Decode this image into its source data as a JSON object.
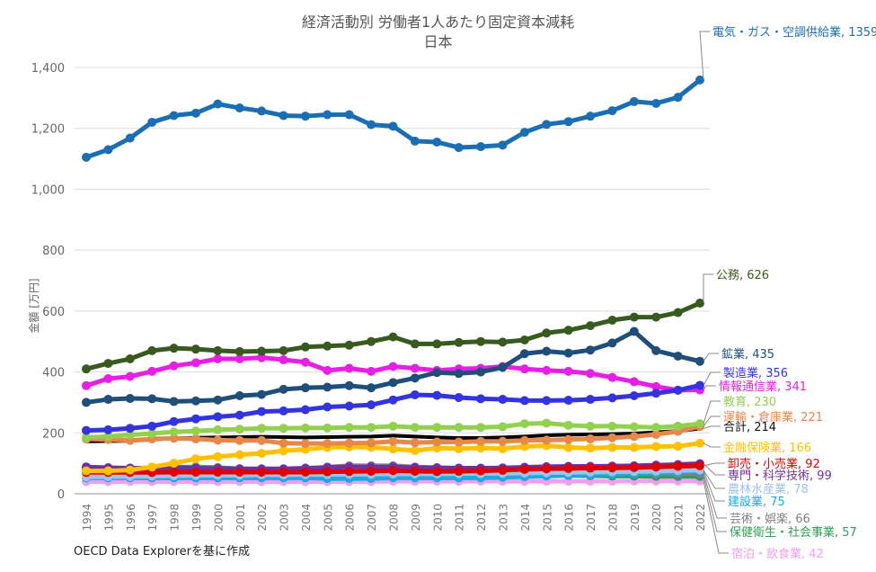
{
  "chart_data": {
    "type": "line",
    "title": "経済活動別 労働者1人あたり固定資本減耗",
    "subtitle": "日本",
    "xlabel": "",
    "ylabel": "金額 [万円]",
    "ylim": [
      0,
      1400
    ],
    "yticks": [
      0,
      200,
      400,
      600,
      800,
      1000,
      1200,
      1400
    ],
    "ytick_labels": [
      "0",
      "200",
      "400",
      "600",
      "800",
      "1,000",
      "1,200",
      "1,400"
    ],
    "grid": true,
    "legend": "direct labels at right end of lines",
    "x": [
      1994,
      1995,
      1996,
      1997,
      1998,
      1999,
      2000,
      2001,
      2002,
      2003,
      2004,
      2005,
      2006,
      2007,
      2008,
      2009,
      2010,
      2011,
      2012,
      2013,
      2014,
      2015,
      2016,
      2017,
      2018,
      2019,
      2020,
      2021,
      2022
    ],
    "series": [
      {
        "name": "電気・ガス・空調供給業",
        "label": "電気・ガス・空調供給業, 1359",
        "color": "#1a6fb4",
        "values": [
          1105,
          1130,
          1168,
          1220,
          1242,
          1250,
          1280,
          1267,
          1257,
          1242,
          1240,
          1245,
          1245,
          1212,
          1207,
          1158,
          1155,
          1137,
          1140,
          1145,
          1187,
          1213,
          1222,
          1240,
          1258,
          1288,
          1282,
          1302,
          1359
        ]
      },
      {
        "name": "公務",
        "label": "公務, 626",
        "color": "#375a1e",
        "values": [
          410,
          428,
          443,
          470,
          478,
          475,
          470,
          467,
          468,
          470,
          482,
          485,
          488,
          500,
          515,
          492,
          492,
          497,
          500,
          498,
          505,
          528,
          537,
          552,
          570,
          580,
          580,
          595,
          626
        ]
      },
      {
        "name": "鉱業",
        "label": "鉱業, 435",
        "color": "#1f4e79",
        "values": [
          300,
          310,
          313,
          312,
          303,
          305,
          308,
          322,
          326,
          343,
          348,
          350,
          355,
          348,
          365,
          380,
          398,
          395,
          400,
          415,
          460,
          468,
          462,
          472,
          495,
          533,
          470,
          452,
          435
        ]
      },
      {
        "name": "製造業",
        "label": "製造業, 356",
        "color": "#3333e0",
        "values": [
          208,
          210,
          215,
          222,
          237,
          246,
          253,
          258,
          270,
          272,
          276,
          285,
          288,
          292,
          308,
          325,
          323,
          316,
          312,
          310,
          306,
          306,
          307,
          310,
          315,
          322,
          330,
          340,
          356
        ]
      },
      {
        "name": "情報通信業",
        "label": "情報通信業, 341",
        "color": "#e61ee6",
        "values": [
          355,
          378,
          385,
          402,
          420,
          430,
          443,
          443,
          447,
          440,
          432,
          405,
          412,
          402,
          418,
          412,
          405,
          410,
          412,
          418,
          410,
          405,
          402,
          395,
          382,
          368,
          352,
          340,
          341
        ]
      },
      {
        "name": "教育",
        "label": "教育, 230",
        "color": "#92d050",
        "values": [
          185,
          188,
          193,
          198,
          203,
          206,
          210,
          212,
          215,
          215,
          216,
          216,
          218,
          218,
          222,
          218,
          218,
          218,
          218,
          220,
          230,
          232,
          225,
          222,
          222,
          220,
          218,
          222,
          230
        ]
      },
      {
        "name": "運輸・倉庫業",
        "label": "運輸・倉庫業, 221",
        "color": "#e5884a",
        "values": [
          180,
          178,
          175,
          180,
          182,
          180,
          176,
          175,
          175,
          166,
          165,
          165,
          166,
          167,
          172,
          168,
          170,
          170,
          172,
          172,
          175,
          176,
          178,
          180,
          184,
          188,
          195,
          205,
          221
        ]
      },
      {
        "name": "合計",
        "label": "合計, 214",
        "color": "#000000",
        "values": [
          172,
          173,
          174,
          178,
          182,
          184,
          185,
          186,
          187,
          186,
          185,
          186,
          187,
          188,
          191,
          188,
          185,
          183,
          183,
          185,
          188,
          192,
          194,
          195,
          196,
          198,
          202,
          206,
          214
        ]
      },
      {
        "name": "金融保険業",
        "label": "金融保険業, 166",
        "color": "#ffc000",
        "values": [
          75,
          75,
          78,
          88,
          100,
          115,
          122,
          128,
          133,
          141,
          146,
          152,
          154,
          153,
          147,
          142,
          150,
          148,
          150,
          148,
          155,
          158,
          152,
          150,
          152,
          152,
          155,
          156,
          166
        ]
      },
      {
        "name": "卸売・小売業",
        "label": "卸売・小売業, 92",
        "color": "#e00000",
        "values": [
          70,
          70,
          70,
          70,
          71,
          71,
          71,
          71,
          71,
          71,
          71,
          72,
          73,
          74,
          76,
          74,
          73,
          74,
          75,
          77,
          80,
          82,
          83,
          84,
          85,
          86,
          88,
          90,
          92
        ]
      },
      {
        "name": "専門・科学技術",
        "label": "専門・科学技術, 99",
        "color": "#7030a0",
        "values": [
          88,
          85,
          84,
          84,
          85,
          84,
          83,
          82,
          82,
          82,
          84,
          86,
          88,
          88,
          88,
          86,
          85,
          84,
          84,
          85,
          87,
          89,
          90,
          90,
          91,
          92,
          94,
          96,
          99
        ]
      },
      {
        "name": "農林水産業",
        "label": "農林水産業, 78",
        "color": "#9dc3e6",
        "values": [
          55,
          56,
          57,
          58,
          59,
          60,
          61,
          61,
          62,
          62,
          63,
          63,
          64,
          64,
          65,
          65,
          65,
          66,
          66,
          67,
          68,
          69,
          70,
          71,
          72,
          73,
          74,
          76,
          78
        ]
      },
      {
        "name": "建設業",
        "label": "建設業, 75",
        "color": "#1aa9e0",
        "values": [
          52,
          52,
          52,
          52,
          52,
          52,
          52,
          52,
          52,
          52,
          52,
          50,
          50,
          50,
          52,
          52,
          52,
          52,
          52,
          54,
          56,
          58,
          60,
          62,
          64,
          66,
          68,
          71,
          75
        ]
      },
      {
        "name": "芸術・娯楽",
        "label": "芸術・娯楽, 66",
        "color": "#808080",
        "values": [
          88,
          86,
          84,
          84,
          84,
          86,
          84,
          82,
          80,
          80,
          82,
          88,
          92,
          92,
          92,
          88,
          86,
          84,
          82,
          80,
          78,
          76,
          74,
          72,
          70,
          68,
          66,
          66,
          66
        ]
      },
      {
        "name": "保健衛生・社会事業",
        "label": "保健衛生・社会事業, 57",
        "color": "#2e9e55",
        "values": [
          82,
          80,
          82,
          86,
          88,
          88,
          86,
          82,
          80,
          76,
          74,
          72,
          70,
          68,
          66,
          64,
          62,
          60,
          60,
          60,
          60,
          60,
          60,
          59,
          58,
          58,
          57,
          57,
          57
        ]
      },
      {
        "name": "宿泊・飲食業",
        "label": "宿泊・飲食業, 42",
        "color": "#f0a0f0",
        "values": [
          40,
          40,
          40,
          40,
          40,
          40,
          40,
          40,
          40,
          40,
          40,
          40,
          40,
          40,
          41,
          41,
          41,
          41,
          41,
          41,
          41,
          41,
          41,
          41,
          41,
          42,
          42,
          42,
          42
        ]
      }
    ]
  },
  "source_note": "OECD Data Explorerを基に作成"
}
